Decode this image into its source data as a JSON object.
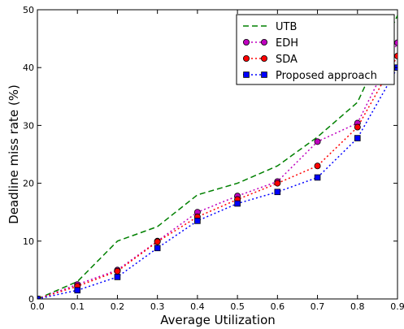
{
  "chart_data": {
    "type": "line",
    "title": "",
    "xlabel": "Average Utilization",
    "ylabel": "Deadline miss rate (%)",
    "xlim": [
      0.0,
      0.9
    ],
    "ylim": [
      0,
      50
    ],
    "xticks": [
      "0.0",
      "0.1",
      "0.2",
      "0.3",
      "0.4",
      "0.5",
      "0.6",
      "0.7",
      "0.8",
      "0.9"
    ],
    "yticks": [
      "0",
      "10",
      "20",
      "30",
      "40",
      "50"
    ],
    "grid": false,
    "legend_position": "top-right",
    "x": [
      0.0,
      0.1,
      0.2,
      0.3,
      0.4,
      0.5,
      0.6,
      0.7,
      0.8,
      0.9
    ],
    "series": [
      {
        "name": "UTB",
        "color": "#008000",
        "linestyle": "dashed",
        "marker": "none",
        "values": [
          0,
          3,
          10,
          12.5,
          18,
          20,
          23,
          28,
          34,
          49
        ]
      },
      {
        "name": "EDH",
        "color": "#bf00bf",
        "linestyle": "dotted",
        "marker": "circle",
        "values": [
          0,
          2.5,
          5,
          10,
          15,
          17.8,
          20.3,
          27.2,
          30.4,
          44.3
        ]
      },
      {
        "name": "SDA",
        "color": "#ff0000",
        "linestyle": "dotted",
        "marker": "circle",
        "values": [
          0,
          2.2,
          4.8,
          9.9,
          14.2,
          17.2,
          20,
          23,
          29.7,
          42
        ]
      },
      {
        "name": "Proposed approach",
        "color": "#0000ff",
        "linestyle": "dotted",
        "marker": "square",
        "values": [
          0,
          1.5,
          3.8,
          8.8,
          13.5,
          16.5,
          18.5,
          21,
          27.8,
          40
        ]
      }
    ]
  }
}
